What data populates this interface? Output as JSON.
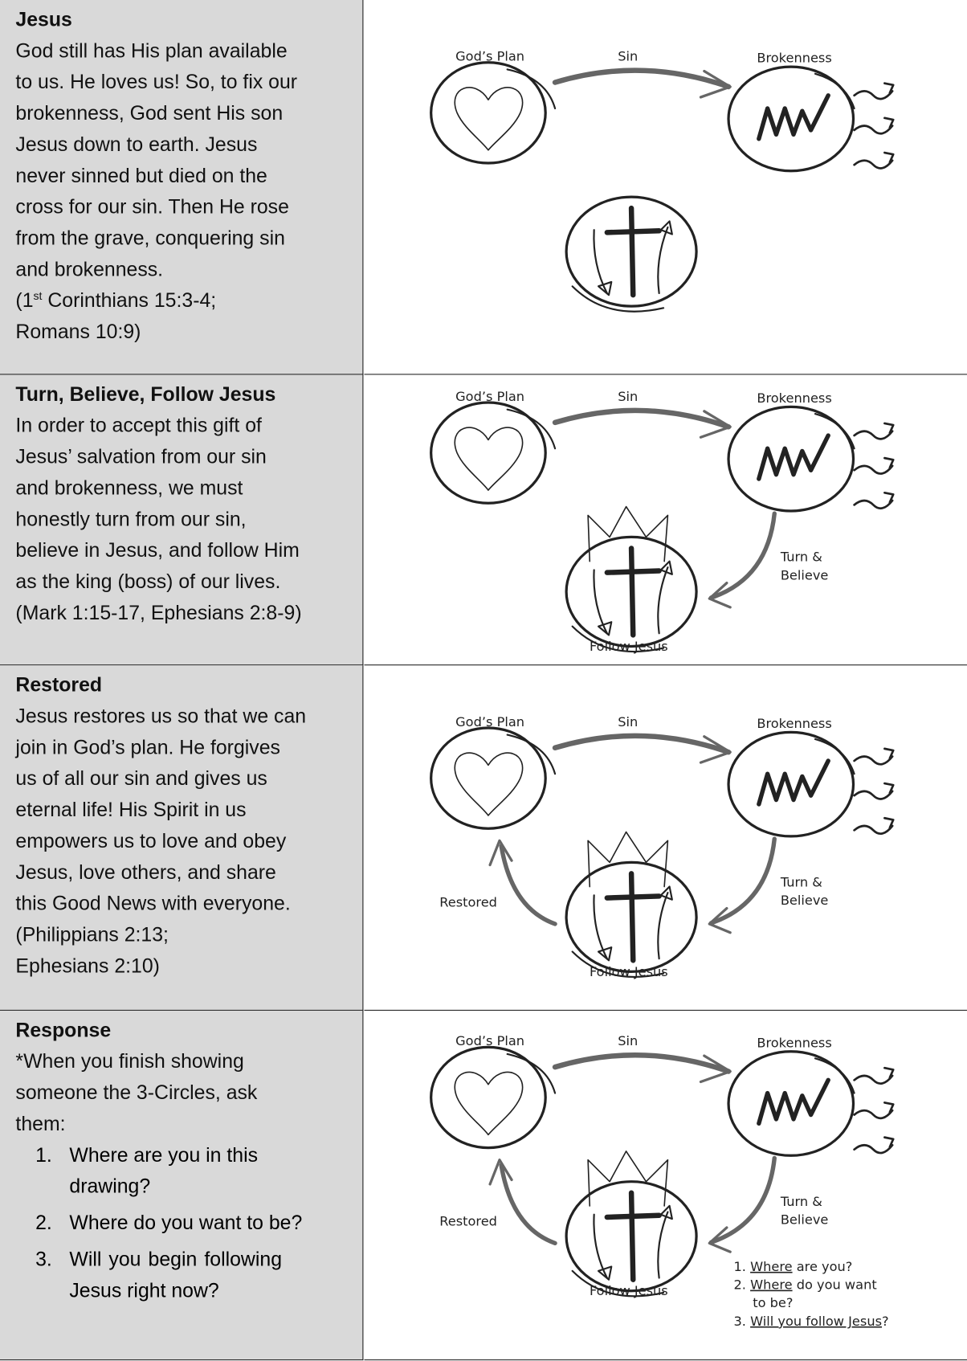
{
  "rows": [
    {
      "title": "Jesus",
      "lines": [
        "God still has His plan available",
        "to us. He loves us! So, to fix our",
        "brokenness, God sent His son",
        "Jesus down to earth. Jesus",
        "never sinned but died on the",
        "cross for our sin. Then He rose",
        "from the grave, conquering sin",
        "and brokenness.",
        [
          "(1",
          "st",
          " Corinthians 15:3-4;"
        ],
        "Romans 10:9)"
      ],
      "diagram": {
        "plan": "God’s Plan",
        "sin": "Sin",
        "brokenness": "Brokenness"
      }
    },
    {
      "title": "Turn, Believe, Follow Jesus",
      "lines": [
        "In order to accept this gift of",
        "Jesus’ salvation from our sin",
        "and brokenness, we must",
        "honestly turn from our sin,",
        "believe in Jesus, and follow Him",
        "as the king (boss) of our lives.",
        "(Mark 1:15-17, Ephesians 2:8-9)"
      ],
      "diagram": {
        "plan": "God’s Plan",
        "sin": "Sin",
        "brokenness": "Brokenness",
        "turn": [
          "Turn &",
          "Believe"
        ],
        "follow": "Follow Jesus"
      }
    },
    {
      "title": "Restored",
      "lines": [
        "Jesus restores us so that we can",
        "join in God’s plan. He forgives",
        "us of all our sin and gives us",
        "eternal life! His Spirit in us",
        "empowers us to love and obey",
        "Jesus, love others, and share",
        "this Good News with everyone.",
        "(Philippians 2:13;",
        "Ephesians 2:10)"
      ],
      "diagram": {
        "plan": "God’s Plan",
        "sin": "Sin",
        "brokenness": "Brokenness",
        "turn": [
          "Turn &",
          "Believe"
        ],
        "follow": "Follow Jesus",
        "restored": "Restored"
      }
    },
    {
      "title": "Response",
      "lines": [
        "*When you finish showing",
        "someone the 3-Circles, ask",
        "them:"
      ],
      "list": [
        {
          "number": "1.",
          "lines": [
            "Where are you in this",
            "drawing?"
          ]
        },
        {
          "number": "2.",
          "lines": [
            "Where do you want to be?"
          ]
        },
        {
          "number": "3.",
          "lines": [
            "Will   you   begin   following",
            "Jesus right now?"
          ]
        }
      ],
      "diagram": {
        "plan": "God’s Plan",
        "sin": "Sin",
        "brokenness": "Brokenness",
        "turn": [
          "Turn &",
          "Believe"
        ],
        "follow": "Follow Jesus",
        "restored": "Restored",
        "questions": [
          [
            "1. ",
            "Where",
            " are you?"
          ],
          [
            "2. ",
            "Where",
            " do you want"
          ],
          [
            "to be?"
          ],
          [
            "3. ",
            "Will you follow Jesus",
            "?"
          ]
        ]
      }
    }
  ]
}
